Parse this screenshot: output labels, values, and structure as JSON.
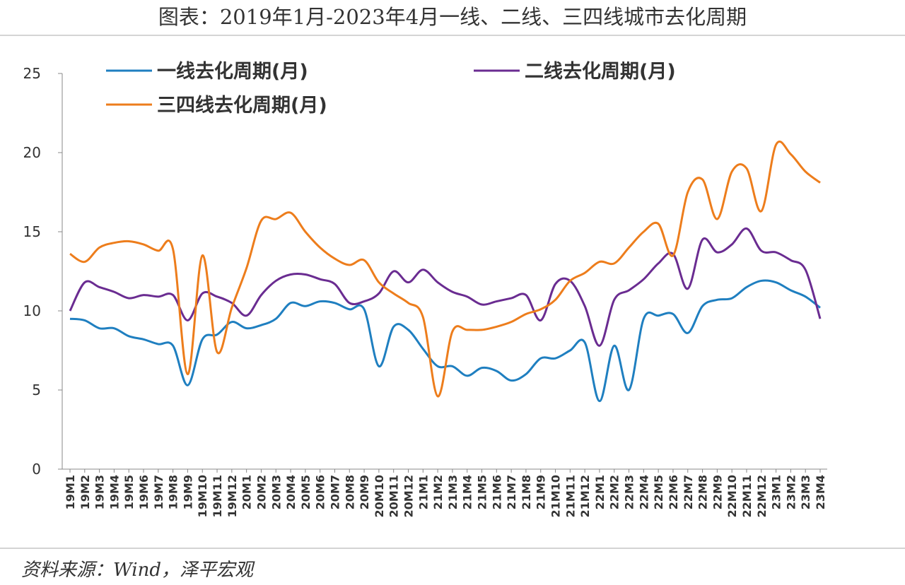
{
  "chart_data": {
    "type": "line",
    "title": "图表：2019年1月-2023年4月一线、二线、三四线城市去化周期",
    "source": "资料来源：Wind，泽平宏观",
    "categories": [
      "19M1",
      "19M2",
      "19M3",
      "19M4",
      "19M5",
      "19M6",
      "19M7",
      "19M8",
      "19M9",
      "19M10",
      "19M11",
      "19M12",
      "20M1",
      "20M2",
      "20M3",
      "20M4",
      "20M5",
      "20M6",
      "20M7",
      "20M8",
      "20M9",
      "20M10",
      "20M11",
      "20M12",
      "21M1",
      "21M2",
      "21M3",
      "21M4",
      "21M5",
      "21M6",
      "21M7",
      "21M8",
      "21M9",
      "21M10",
      "21M11",
      "21M12",
      "22M1",
      "22M2",
      "22M3",
      "22M4",
      "22M5",
      "22M6",
      "22M7",
      "22M8",
      "22M9",
      "22M10",
      "22M11",
      "22M12",
      "23M1",
      "23M2",
      "23M3",
      "23M4"
    ],
    "series": [
      {
        "name": "一线去化周期(月)",
        "color": "#1f7fc0",
        "values": [
          9.5,
          9.4,
          8.9,
          8.9,
          8.4,
          8.2,
          7.9,
          7.8,
          5.3,
          8.2,
          8.5,
          9.3,
          8.9,
          9.1,
          9.5,
          10.5,
          10.3,
          10.6,
          10.5,
          10.1,
          10.1,
          6.5,
          9.0,
          8.8,
          7.6,
          6.5,
          6.5,
          5.9,
          6.4,
          6.2,
          5.6,
          6.0,
          7.0,
          7.0,
          7.5,
          8.0,
          4.3,
          7.8,
          5.0,
          9.5,
          9.7,
          9.8,
          8.6,
          10.3,
          10.7,
          10.8,
          11.5,
          11.9,
          11.8,
          11.3,
          10.9,
          10.2
        ]
      },
      {
        "name": "二线去化周期(月)",
        "color": "#6a2c91",
        "values": [
          10.0,
          11.8,
          11.5,
          11.2,
          10.8,
          11.0,
          10.9,
          11.0,
          9.4,
          11.1,
          10.9,
          10.5,
          9.7,
          11.0,
          11.9,
          12.3,
          12.3,
          12.0,
          11.7,
          10.5,
          10.6,
          11.1,
          12.5,
          11.8,
          12.6,
          11.8,
          11.2,
          10.9,
          10.4,
          10.6,
          10.8,
          11.0,
          9.4,
          11.7,
          11.9,
          10.3,
          7.8,
          10.7,
          11.3,
          12.0,
          13.0,
          13.6,
          11.4,
          14.5,
          13.7,
          14.2,
          15.2,
          13.8,
          13.7,
          13.2,
          12.6,
          9.5
        ]
      },
      {
        "name": "三四线去化周期(月)",
        "color": "#ed7d1c",
        "values": [
          13.6,
          13.1,
          14.0,
          14.3,
          14.4,
          14.2,
          13.8,
          13.9,
          6.0,
          13.5,
          7.4,
          10.2,
          12.7,
          15.7,
          15.8,
          16.2,
          15.0,
          14.0,
          13.3,
          12.9,
          13.2,
          11.8,
          11.1,
          10.5,
          9.6,
          4.6,
          8.7,
          8.8,
          8.8,
          9.0,
          9.3,
          9.8,
          10.1,
          10.7,
          11.9,
          12.4,
          13.1,
          13.0,
          14.0,
          15.0,
          15.5,
          13.5,
          17.5,
          18.3,
          15.8,
          18.8,
          19.0,
          16.3,
          20.5,
          19.9,
          18.8,
          18.1
        ]
      }
    ],
    "ylim": [
      0,
      25
    ],
    "yticks": [
      0,
      5,
      10,
      15,
      20,
      25
    ],
    "grid": false
  }
}
